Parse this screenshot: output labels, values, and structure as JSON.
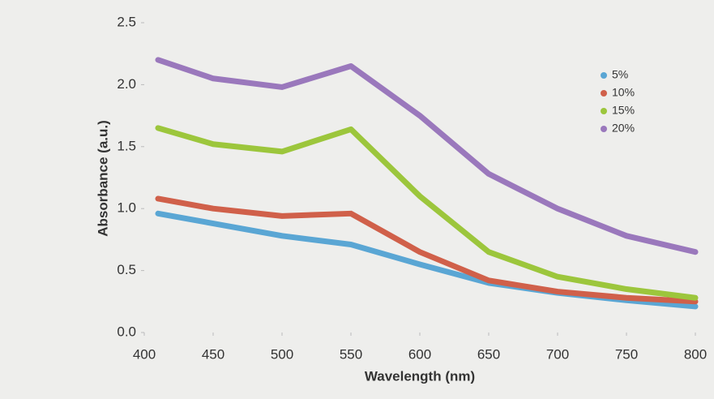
{
  "chart_data": {
    "type": "line",
    "xlabel": "Wavelength (nm)",
    "ylabel": "Absorbance (a.u.)",
    "x": [
      410,
      450,
      500,
      550,
      600,
      650,
      700,
      750,
      800
    ],
    "series": [
      {
        "name": "5%",
        "color": "#5aa6d4",
        "values": [
          0.96,
          0.88,
          0.78,
          0.71,
          0.55,
          0.4,
          0.32,
          0.26,
          0.21
        ]
      },
      {
        "name": "10%",
        "color": "#d0604a",
        "values": [
          1.08,
          1.0,
          0.94,
          0.96,
          0.65,
          0.42,
          0.33,
          0.28,
          0.25
        ]
      },
      {
        "name": "15%",
        "color": "#9cc63c",
        "values": [
          1.65,
          1.52,
          1.46,
          1.64,
          1.1,
          0.65,
          0.45,
          0.35,
          0.28
        ]
      },
      {
        "name": "20%",
        "color": "#9a78bc",
        "values": [
          2.2,
          2.05,
          1.98,
          2.15,
          1.75,
          1.28,
          1.0,
          0.78,
          0.65
        ]
      }
    ],
    "xlim": [
      400,
      800
    ],
    "xticks": [
      400,
      450,
      500,
      550,
      600,
      650,
      700,
      750,
      800
    ],
    "ylim": [
      0,
      2.5
    ],
    "yticks": [
      {
        "value": 0,
        "label": "0.0"
      },
      0.5,
      {
        "value": 1,
        "label": "1.0"
      },
      1.5,
      {
        "value": 2,
        "label": "2.0"
      },
      2.5
    ],
    "legend": "upper right"
  }
}
